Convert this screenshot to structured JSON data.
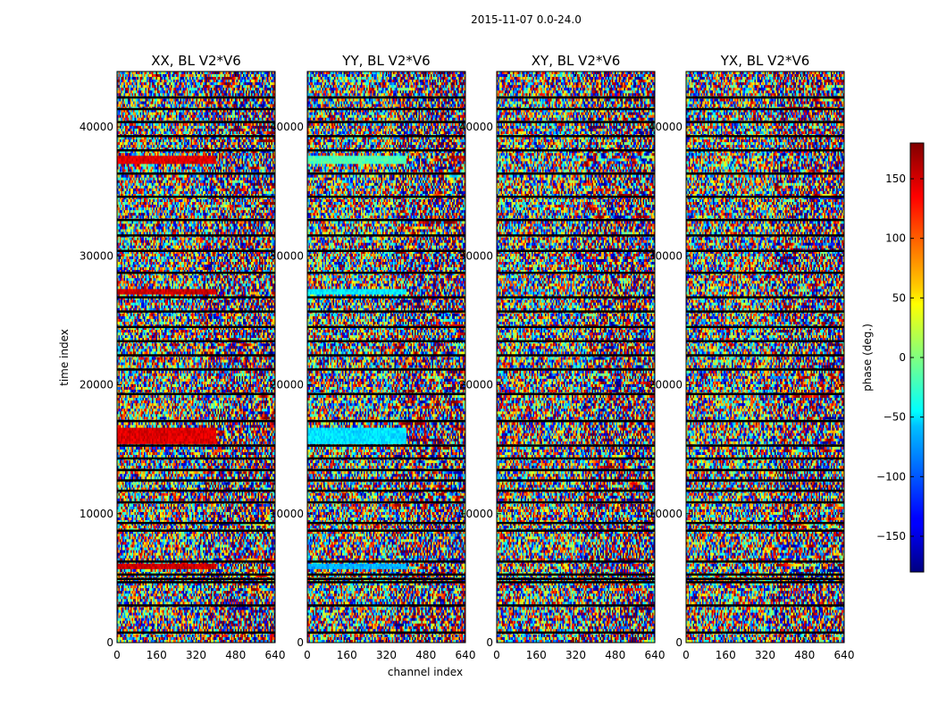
{
  "suptitle": "2015-11-07 0.0-24.0",
  "chart_data": {
    "type": "heatmap",
    "title": "2015-11-07 0.0-24.0",
    "xlabel": "channel index",
    "ylabel": "time index",
    "xlim": [
      0,
      640
    ],
    "ylim": [
      0,
      44300
    ],
    "x_ticks": [
      "0",
      "160",
      "320",
      "480",
      "640"
    ],
    "y_ticks": [
      "0",
      "10000",
      "20000",
      "30000",
      "40000"
    ],
    "colormap": "jet",
    "colorbar": {
      "label": "phase (deg.)",
      "range": [
        -180,
        180
      ],
      "ticks": [
        "−150",
        "−100",
        "−50",
        "0",
        "50",
        "100",
        "150"
      ],
      "tick_values": [
        -150,
        -100,
        -50,
        0,
        50,
        100,
        150
      ]
    },
    "panels": [
      {
        "title": "XX, BL V2*V6",
        "polarization": "XX"
      },
      {
        "title": "YY, BL V2*V6",
        "polarization": "YY"
      },
      {
        "title": "XY, BL V2*V6",
        "polarization": "XY"
      },
      {
        "title": "YX, BL V2*V6",
        "polarization": "YX"
      }
    ]
  }
}
